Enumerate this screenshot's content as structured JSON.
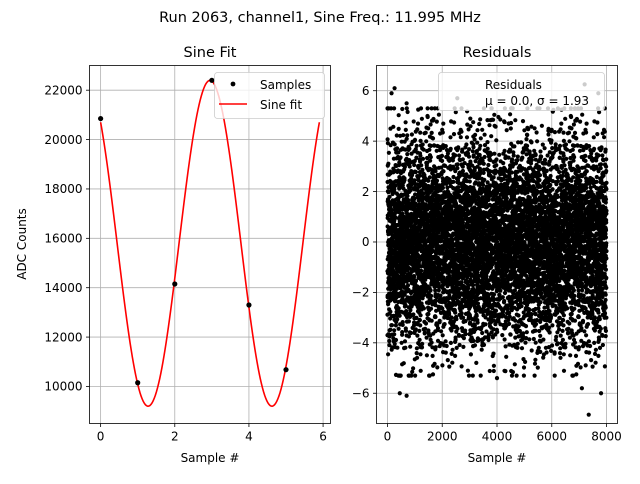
{
  "figure": {
    "suptitle": "Run 2063, channel1, Sine Freq.: 11.995 MHz"
  },
  "chart_data": [
    {
      "type": "line",
      "title": "Sine Fit",
      "xlabel": "Sample #",
      "ylabel": "ADC Counts",
      "xlim": [
        -0.3,
        6.2
      ],
      "ylim": [
        8500,
        23000
      ],
      "xticks": [
        0,
        2,
        4,
        6
      ],
      "yticks": [
        10000,
        12000,
        14000,
        16000,
        18000,
        20000,
        22000
      ],
      "grid": true,
      "legend": {
        "placement": "top-right",
        "entries": [
          "Samples",
          "Sine fit"
        ]
      },
      "samples": {
        "name": "Samples",
        "color": "#000000",
        "x": [
          0,
          1,
          2,
          3,
          4,
          5
        ],
        "y": [
          20850,
          10150,
          14150,
          22400,
          13300,
          10680
        ]
      },
      "fit": {
        "name": "Sine fit",
        "color": "#ff0000",
        "model": {
          "offset": 15800,
          "amplitude": 6600,
          "period": 3.34,
          "peak_x": 2.95
        },
        "x_range": [
          0,
          5.9
        ]
      }
    },
    {
      "type": "scatter",
      "title": "Residuals",
      "xlabel": "Sample #",
      "xlim": [
        -400,
        8400
      ],
      "ylim": [
        -7.2,
        7.0
      ],
      "xticks": [
        0,
        2000,
        4000,
        6000,
        8000
      ],
      "yticks": [
        -6,
        -4,
        -2,
        0,
        2,
        4,
        6
      ],
      "grid": true,
      "legend": {
        "placement": "top-right",
        "entries": [
          "Residuals"
        ],
        "stats": "μ = 0.0, σ = 1.93"
      },
      "series": [
        {
          "name": "Residuals",
          "color": "#000000",
          "n_points": 8000,
          "mean": 0.0,
          "std": 1.93,
          "x_range": [
            0,
            7999
          ],
          "outliers": [
            {
              "x": 150,
              "y": 5.9
            },
            {
              "x": 260,
              "y": 6.1
            },
            {
              "x": 700,
              "y": 5.5
            },
            {
              "x": 2550,
              "y": 5.7
            },
            {
              "x": 7200,
              "y": 6.25
            },
            {
              "x": 7700,
              "y": 5.9
            },
            {
              "x": 450,
              "y": -6.0
            },
            {
              "x": 700,
              "y": -6.1
            },
            {
              "x": 7350,
              "y": -6.85
            },
            {
              "x": 7800,
              "y": -6.0
            },
            {
              "x": 7100,
              "y": -5.8
            },
            {
              "x": 4000,
              "y": -5.4
            }
          ]
        }
      ]
    }
  ]
}
